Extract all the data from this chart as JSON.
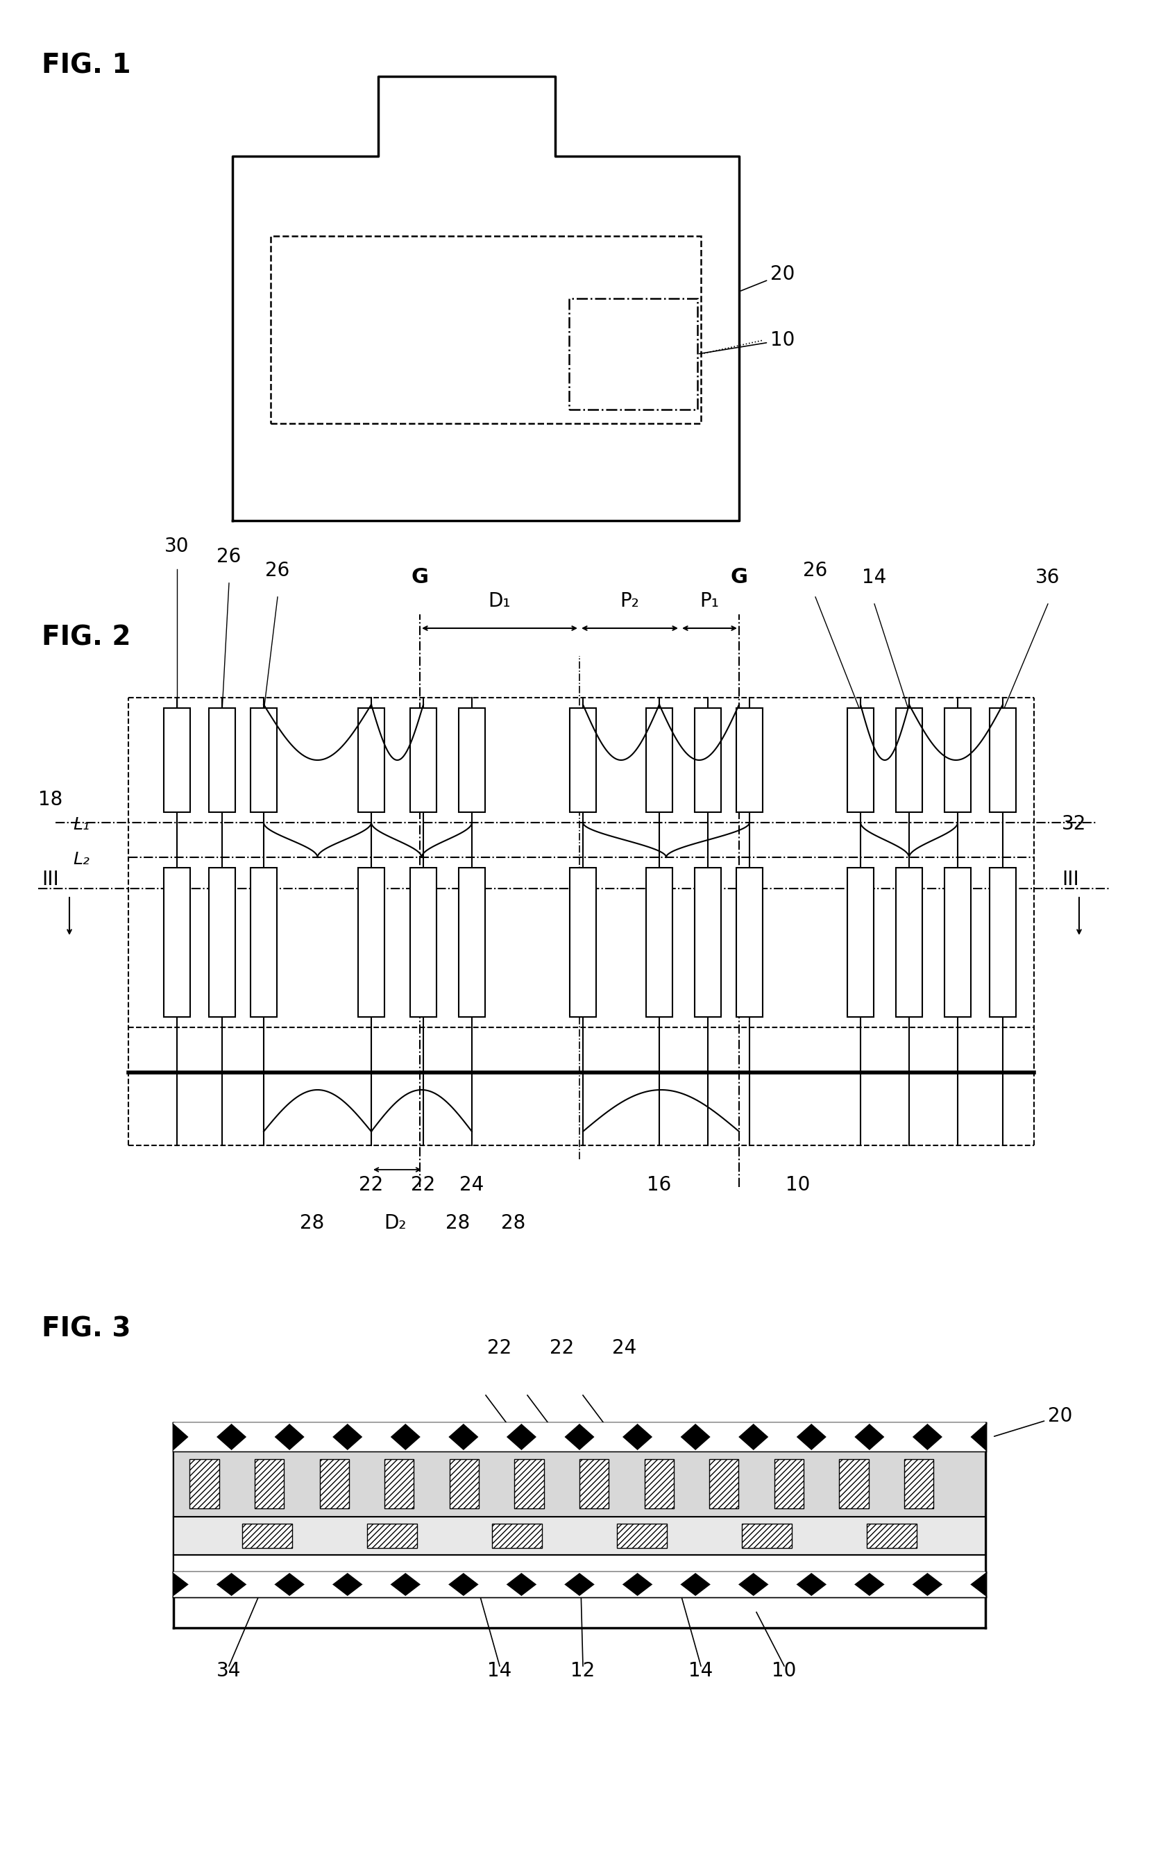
{
  "fig1_label": "FIG. 1",
  "fig2_label": "FIG. 2",
  "fig3_label": "FIG. 3",
  "bg_color": "#ffffff",
  "line_color": "#000000",
  "label_fontsize": 28,
  "ref_fontsize": 20
}
